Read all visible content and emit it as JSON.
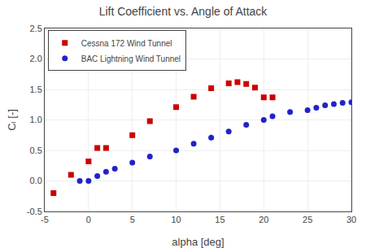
{
  "chart_data": {
    "type": "scatter",
    "title": "Lift Coefficient vs. Angle of Attack",
    "x_label": "alpha [deg]",
    "y_label": "Cₗ [-]",
    "series": [
      {
        "name": "Cessna 172 Wind Tunnel",
        "color": "#cc0000",
        "marker": "square",
        "x": [
          -4,
          -2,
          0,
          1,
          2,
          5,
          7,
          10,
          12,
          14,
          16,
          17,
          18,
          19,
          20,
          21
        ],
        "values": [
          -0.2,
          0.1,
          0.32,
          0.54,
          0.54,
          0.75,
          0.98,
          1.21,
          1.38,
          1.52,
          1.6,
          1.62,
          1.59,
          1.53,
          1.37,
          1.37
        ]
      },
      {
        "name": "BAC Lightning Wind Tunnel",
        "color": "#2222cc",
        "marker": "circle",
        "x": [
          -1,
          0,
          1,
          2,
          3,
          5,
          7,
          10,
          12,
          14,
          16,
          18,
          20,
          21,
          23,
          25,
          26,
          27,
          28,
          29,
          30
        ],
        "values": [
          0.0,
          0.0,
          0.08,
          0.15,
          0.2,
          0.3,
          0.4,
          0.5,
          0.61,
          0.71,
          0.81,
          0.92,
          1.0,
          1.06,
          1.13,
          1.16,
          1.2,
          1.24,
          1.26,
          1.28,
          1.29
        ]
      }
    ],
    "xlim": [
      -5,
      30
    ],
    "ylim": [
      -0.5,
      2.5
    ],
    "xticks": [
      -5,
      0,
      5,
      10,
      15,
      20,
      25,
      30
    ],
    "yticks": [
      -0.5,
      {
        "value": 0,
        "label": "0.0"
      },
      0.5,
      {
        "value": 1.0,
        "label": "1.0"
      },
      1.5,
      {
        "value": 2.0,
        "label": "2.0"
      },
      2.5
    ],
    "grid": true,
    "legend": "upper left"
  }
}
